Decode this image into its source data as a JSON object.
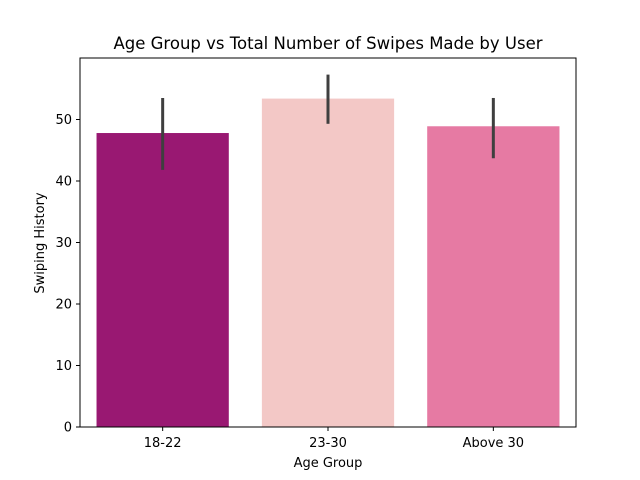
{
  "chart_data": {
    "type": "bar",
    "title": "Age Group vs Total Number of Swipes Made by User",
    "xlabel": "Age Group",
    "ylabel": "Swiping History",
    "categories": [
      "18-22",
      "23-30",
      "Above 30"
    ],
    "values": [
      47.8,
      53.4,
      48.9
    ],
    "error_bars": [
      {
        "low": 41.8,
        "high": 53.5
      },
      {
        "low": 49.3,
        "high": 57.3
      },
      {
        "low": 43.7,
        "high": 53.5
      }
    ],
    "colors": [
      "#991872",
      "#f3c8c6",
      "#e67aa3"
    ],
    "error_bar_color": "#3f3f3f",
    "ylim": [
      0,
      60
    ],
    "yticks": [
      0,
      10,
      20,
      30,
      40,
      50
    ],
    "grid": false,
    "legend": "none"
  }
}
